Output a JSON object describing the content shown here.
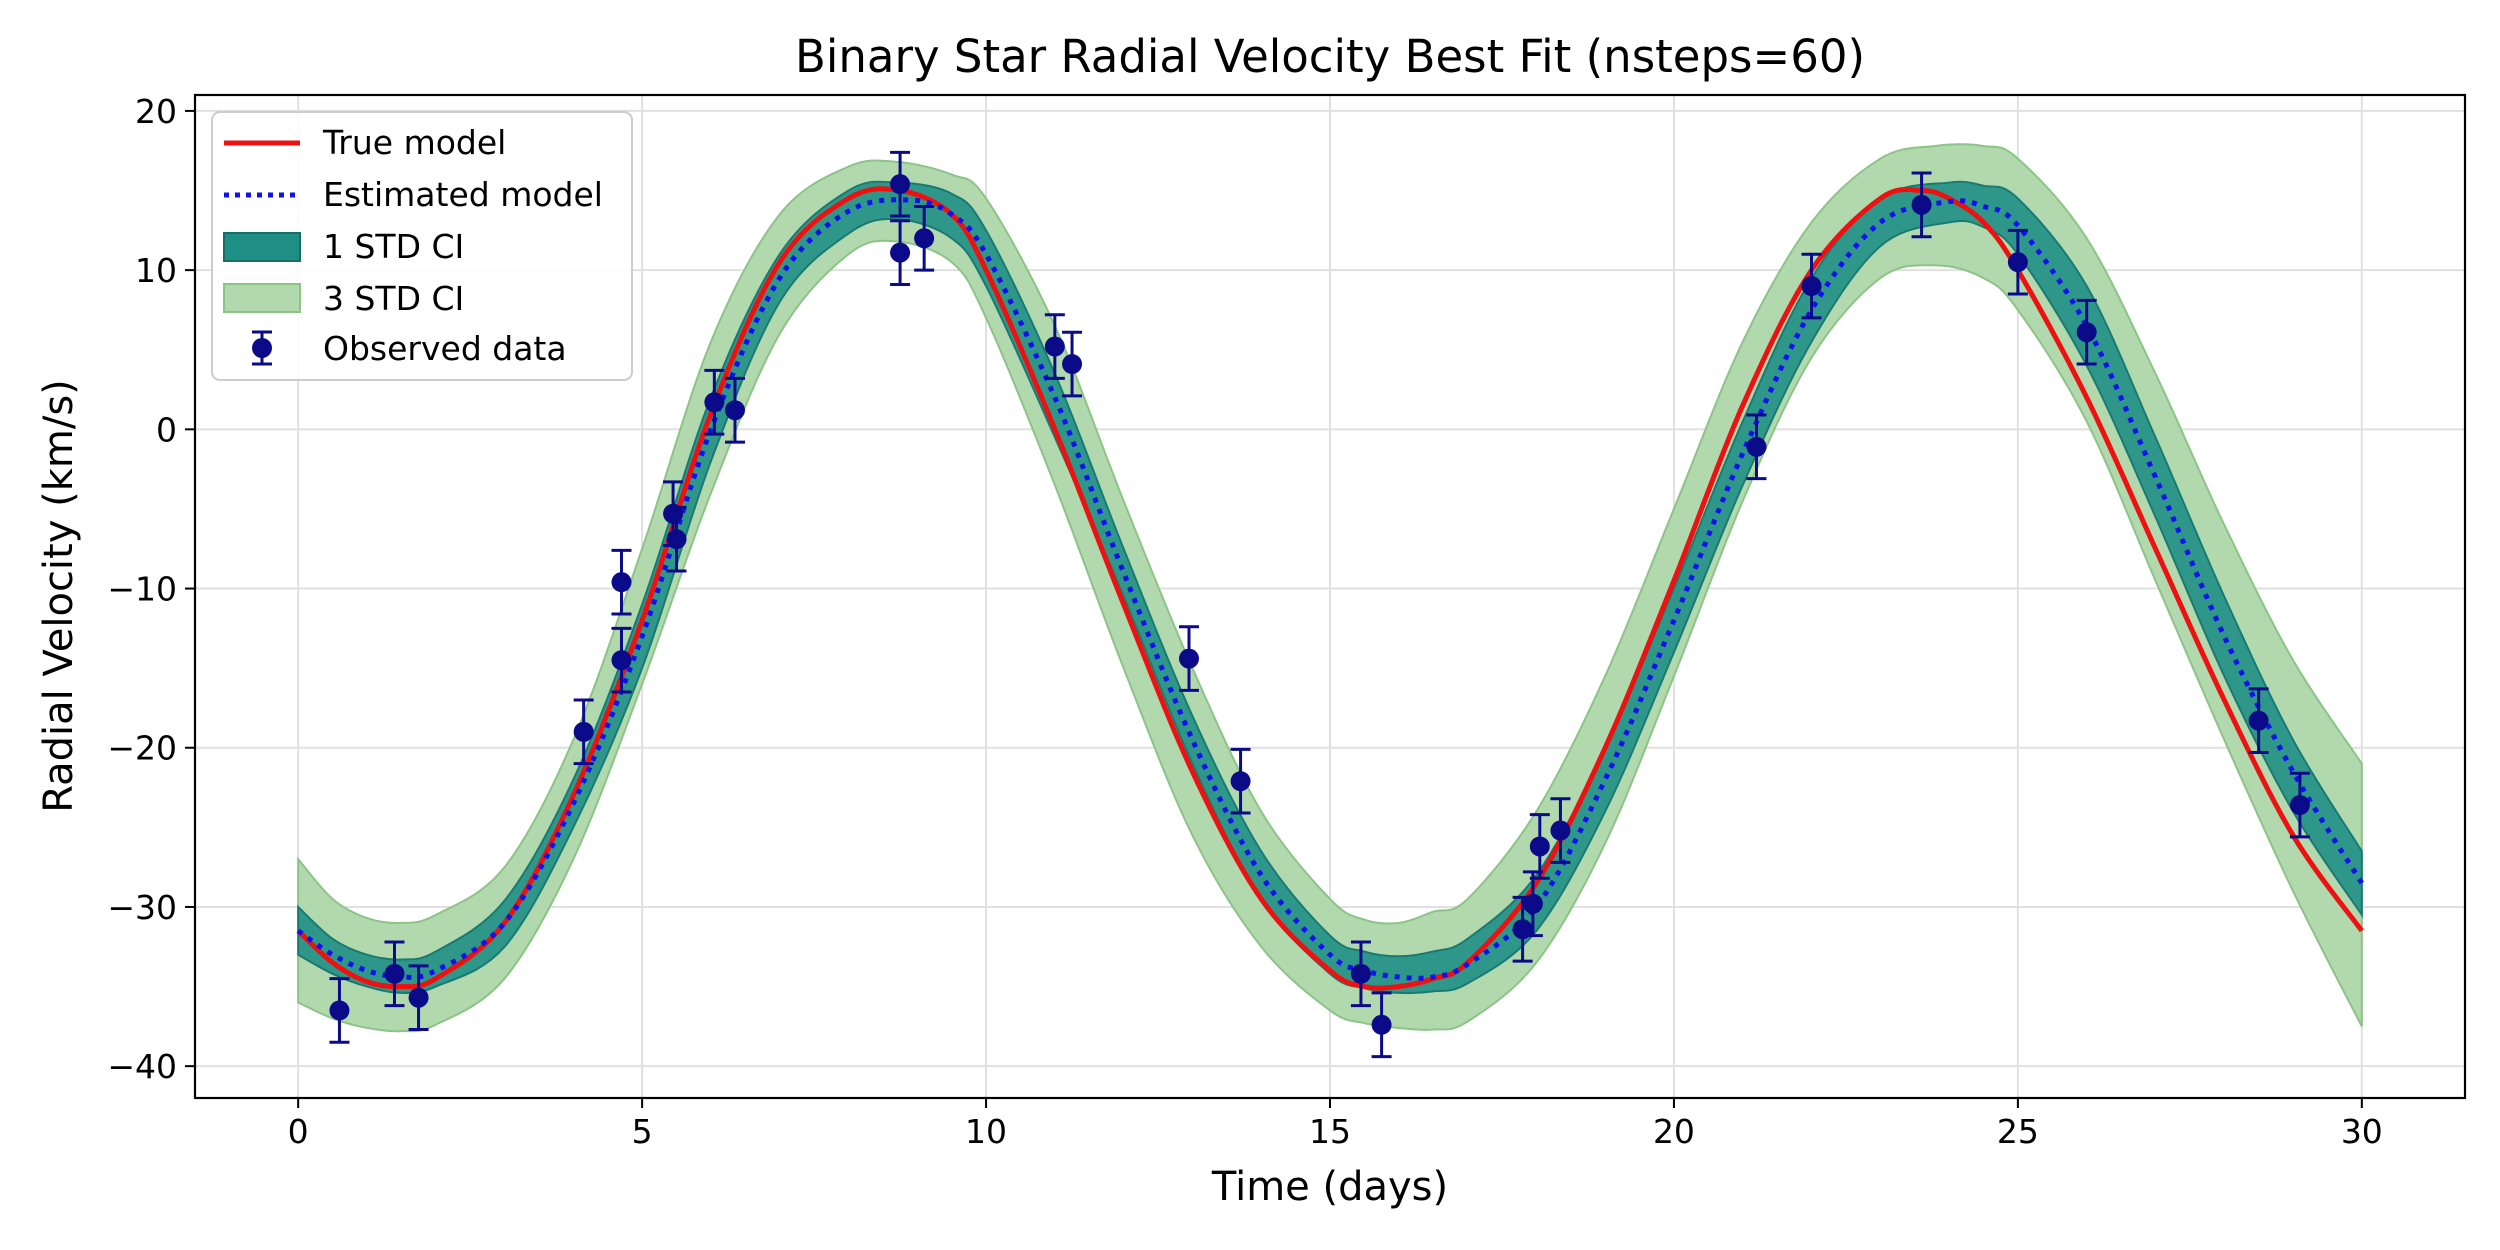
{
  "chart_data": {
    "type": "line",
    "title": "Binary Star Radial Velocity Best Fit (nsteps=60)",
    "xlabel": "Time (days)",
    "ylabel": "Radial Velocity (km/s)",
    "xlim": [
      -1.5,
      31.5
    ],
    "ylim": [
      -42,
      21
    ],
    "xticks": [
      0,
      5,
      10,
      15,
      20,
      25,
      30
    ],
    "yticks": [
      -40,
      -30,
      -20,
      -10,
      0,
      10,
      20
    ],
    "xtick_labels": [
      "0",
      "5",
      "10",
      "15",
      "20",
      "25",
      "30"
    ],
    "ytick_labels": [
      "−40",
      "−30",
      "−20",
      "−10",
      "0",
      "10",
      "20"
    ],
    "grid": true,
    "legend_position": "top-left",
    "legend": [
      {
        "label": "True model",
        "kind": "line-solid",
        "color": "#ee1111"
      },
      {
        "label": "Estimated model",
        "kind": "line-dotted",
        "color": "#1111ee"
      },
      {
        "label": "1 STD CI",
        "kind": "patch",
        "color": "#1f8f86"
      },
      {
        "label": "3 STD CI",
        "kind": "patch",
        "color": "#b2d9ae"
      },
      {
        "label": "Observed data",
        "kind": "errorbar",
        "color": "#0b0b8a"
      }
    ],
    "series": [
      {
        "name": "True model",
        "color": "#ee1111",
        "x": [
          0,
          0.5,
          1,
          1.5,
          2,
          3,
          4,
          5,
          6,
          7,
          8,
          8.75,
          9.5,
          10,
          11,
          12,
          13,
          14,
          15,
          15.5,
          16,
          16.5,
          17,
          18,
          19,
          20,
          21,
          22,
          23,
          23.6,
          24,
          24.5,
          25,
          26,
          27,
          28,
          29,
          30
        ],
        "y": [
          -31.5,
          -33.5,
          -34.7,
          -35,
          -34.5,
          -31,
          -23,
          -12,
          1,
          10.5,
          14.5,
          15,
          13.5,
          10,
          0,
          -11,
          -21.5,
          -29.5,
          -34,
          -35,
          -35,
          -34.5,
          -33.5,
          -28.5,
          -20,
          -9.5,
          1.5,
          10,
          14.5,
          15,
          14.5,
          13,
          10,
          2,
          -7.5,
          -17,
          -25.5,
          -31.5
        ]
      },
      {
        "name": "Estimated model",
        "color": "#1111ee",
        "x": [
          0,
          0.5,
          1,
          1.5,
          2,
          3,
          4,
          5,
          6,
          7,
          8,
          8.9,
          9.5,
          10,
          11,
          12,
          13,
          14,
          15,
          15.5,
          16,
          16.5,
          17,
          18,
          19,
          20,
          21,
          22,
          23,
          24,
          24.5,
          25,
          26,
          27,
          28,
          29,
          30
        ],
        "y": [
          -31.5,
          -33,
          -34,
          -34.4,
          -34,
          -31,
          -23.5,
          -13,
          0,
          9.5,
          13.7,
          14.4,
          13.5,
          11,
          2,
          -9,
          -19.5,
          -28,
          -33,
          -34,
          -34.4,
          -34.4,
          -33.6,
          -30,
          -22,
          -12,
          -1.5,
          7.5,
          13,
          14.3,
          14,
          12.8,
          6.5,
          -3,
          -13,
          -21.5,
          -28.5
        ]
      }
    ],
    "bands": [
      {
        "name": "3 STD CI",
        "color": "#b2d9ae",
        "x": [
          0,
          0.5,
          1,
          1.5,
          2,
          3,
          4,
          5,
          6,
          7,
          8,
          8.7,
          9.5,
          10,
          11,
          12,
          13,
          14,
          15,
          15.5,
          16,
          16.5,
          17,
          18,
          19,
          20,
          21,
          22,
          23,
          23.8,
          24.5,
          25,
          26,
          27,
          28,
          29,
          30
        ],
        "upper": [
          -27,
          -29.5,
          -30.7,
          -31,
          -30.5,
          -27.5,
          -19.5,
          -7.5,
          5.5,
          13.5,
          16.5,
          16.8,
          16,
          14.5,
          6.5,
          -4.5,
          -15,
          -24,
          -29.5,
          -30.8,
          -31,
          -30.3,
          -29.5,
          -24,
          -15.5,
          -5,
          5.5,
          13,
          17,
          17.8,
          17.8,
          17,
          12,
          3.5,
          -6,
          -14.5,
          -21
        ],
        "lower": [
          -36,
          -37,
          -37.6,
          -37.8,
          -37.4,
          -34.5,
          -27,
          -16,
          -4,
          6,
          11,
          11.8,
          10.5,
          7,
          -3.5,
          -15,
          -25.5,
          -32.5,
          -36.5,
          -37.3,
          -37.6,
          -37.7,
          -37.2,
          -33.5,
          -26,
          -15.5,
          -4.5,
          4.5,
          9.5,
          10.3,
          9.5,
          7.5,
          0.5,
          -9.5,
          -19.5,
          -29,
          -37.5
        ]
      },
      {
        "name": "1 STD CI",
        "color": "#1f8f86",
        "x": [
          0,
          0.5,
          1,
          1.5,
          2,
          3,
          4,
          5,
          6,
          7,
          8,
          8.7,
          9.5,
          10,
          11,
          12,
          13,
          14,
          15,
          15.5,
          16,
          16.5,
          17,
          18,
          19,
          20,
          21,
          22,
          23,
          24,
          24.5,
          25,
          26,
          27,
          28,
          29,
          30
        ],
        "upper": [
          -30,
          -32,
          -33,
          -33.3,
          -32.8,
          -29.6,
          -22,
          -11,
          2,
          11,
          15,
          15.5,
          14.8,
          12.5,
          3.5,
          -7.5,
          -18,
          -26.5,
          -31.8,
          -32.8,
          -33.1,
          -32.8,
          -32,
          -28,
          -20,
          -10,
          0.5,
          9.5,
          14.5,
          15.5,
          15.3,
          14.5,
          9,
          -0.5,
          -10.5,
          -19.5,
          -26.5
        ],
        "lower": [
          -33,
          -34.2,
          -35,
          -35.4,
          -35,
          -32.5,
          -25,
          -15,
          -2,
          8,
          12.3,
          13.2,
          12,
          9,
          -0.5,
          -10.5,
          -21,
          -29.5,
          -34.2,
          -35.1,
          -35.4,
          -35.3,
          -34.8,
          -31.5,
          -24,
          -14,
          -3.5,
          5.5,
          11.5,
          13,
          12.7,
          11,
          4,
          -5.5,
          -15.5,
          -24,
          -30.5
        ]
      }
    ],
    "observed": {
      "name": "Observed data",
      "color": "#0b0b8a",
      "error": 2,
      "x": [
        0.6,
        1.4,
        1.75,
        4.15,
        4.7,
        4.7,
        5.45,
        5.5,
        6.05,
        6.35,
        8.75,
        8.75,
        9.1,
        11,
        11.25,
        12.95,
        13.7,
        15.45,
        15.75,
        17.8,
        17.95,
        18.05,
        18.35,
        21.2,
        22,
        23.6,
        25,
        26,
        28.5,
        29.1
      ],
      "y": [
        -36.5,
        -34.2,
        -35.7,
        -19,
        -9.6,
        -14.5,
        -5.3,
        -6.9,
        1.7,
        1.2,
        15.4,
        11.1,
        12,
        5.2,
        4.1,
        -14.4,
        -22.1,
        -34.2,
        -37.4,
        -31.4,
        -29.8,
        -26.2,
        -25.2,
        -1.1,
        9,
        14.1,
        10.5,
        6.1,
        -18.3,
        -23.6
      ]
    }
  }
}
